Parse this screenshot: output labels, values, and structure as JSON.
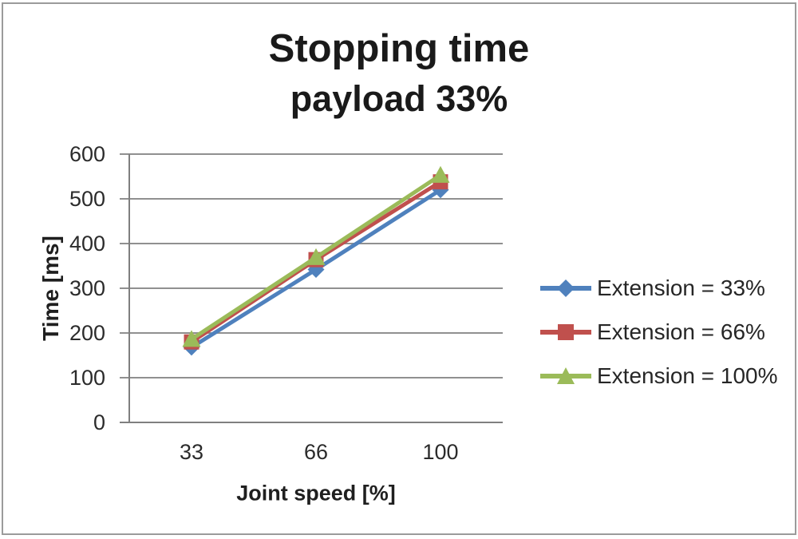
{
  "frame": {
    "background": "#ffffff",
    "border_color": "#9b9b9b"
  },
  "chart_data": {
    "type": "line",
    "title": "Stopping time",
    "subtitle": "payload 33%",
    "xlabel": "Joint speed [%]",
    "ylabel": "Time [ms]",
    "categories": [
      "33",
      "66",
      "100"
    ],
    "series": [
      {
        "name": "Extension = 33%",
        "values": [
          168,
          342,
          520
        ],
        "color": "#4f81bd",
        "marker": "diamond"
      },
      {
        "name": "Extension = 66%",
        "values": [
          180,
          364,
          538
        ],
        "color": "#c0504d",
        "marker": "square"
      },
      {
        "name": "Extension = 100%",
        "values": [
          186,
          369,
          553
        ],
        "color": "#9bbb59",
        "marker": "triangle"
      }
    ],
    "ylim": [
      0,
      600
    ],
    "yticks": [
      0,
      100,
      200,
      300,
      400,
      500,
      600
    ],
    "grid": true,
    "legend_position": "right",
    "gridline_color": "#909090",
    "axis_color": "#7f7f7f",
    "text_color": "#2b2b2b"
  }
}
